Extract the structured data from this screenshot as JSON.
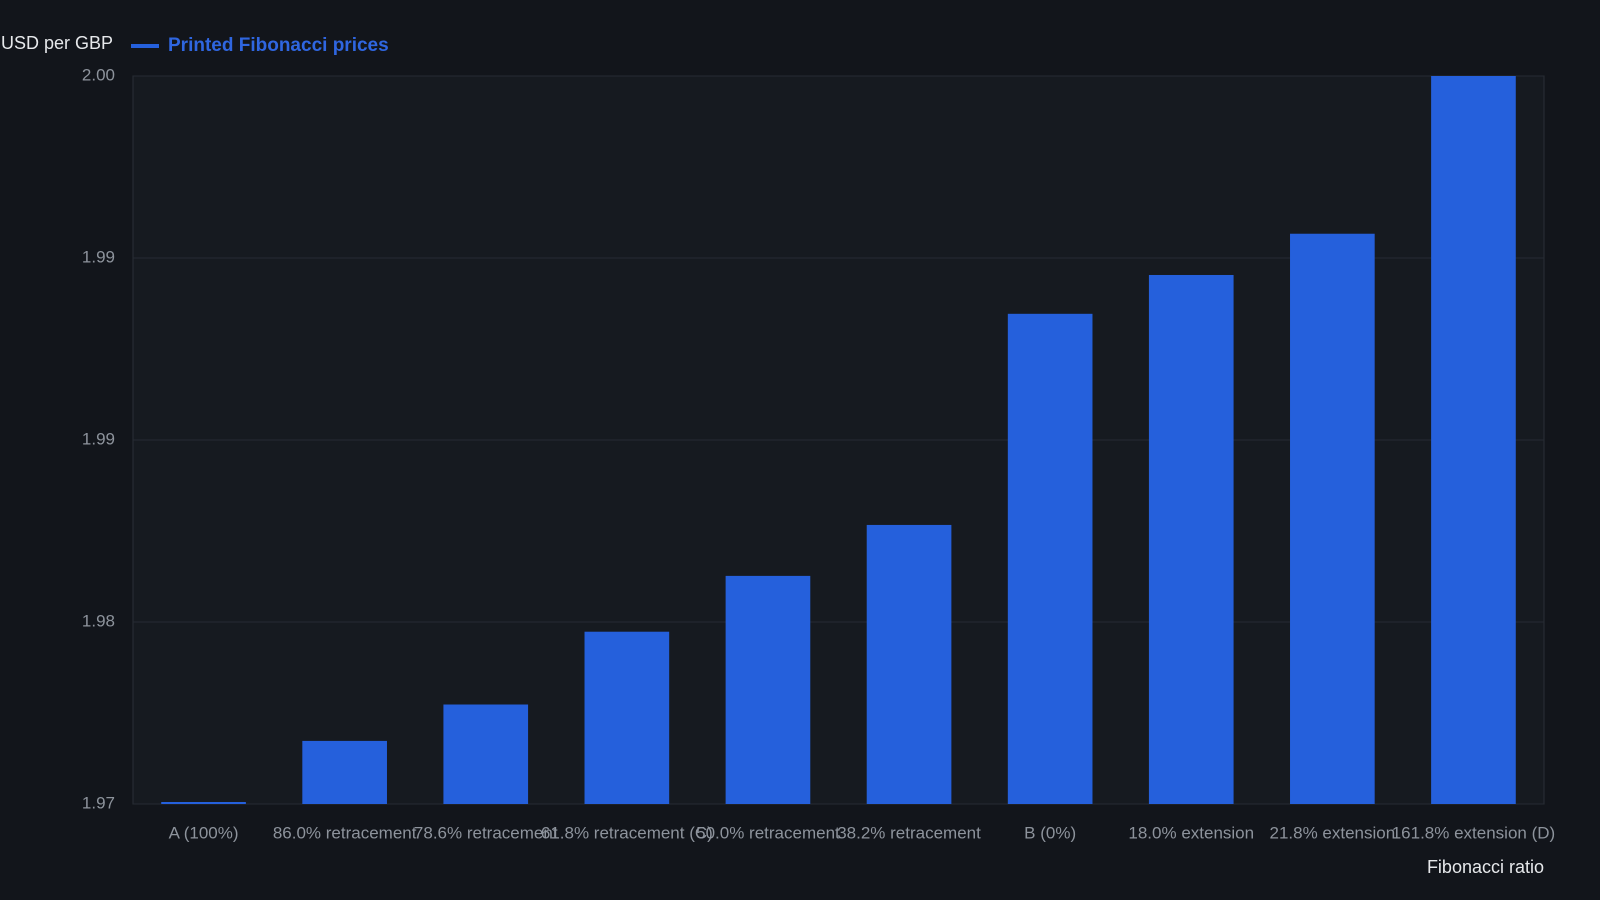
{
  "chart_data": {
    "type": "bar",
    "y_axis_label": "USD per GBP",
    "x_axis_label": "Fibonacci ratio",
    "categories": [
      "A (100%)",
      "86.0% retracement",
      "78.6% retracement",
      "61.8% retracement (C)",
      "50.0% retracement",
      "38.2% retracement",
      "B (0%)",
      "18.0% extension",
      "21.8% extension",
      "161.8% extension (D)"
    ],
    "series": [
      {
        "name": "Printed Fibonacci prices",
        "color": "#2560dc",
        "values": [
          1.97,
          1.9726,
          1.9741,
          1.9771,
          1.9794,
          1.9815,
          1.9902,
          1.9918,
          1.9935,
          2.0
        ]
      }
    ],
    "ylim": [
      1.97,
      2.0
    ],
    "yticks": [
      1.97,
      {
        "value": 1.9775,
        "label": "1.98"
      },
      {
        "value": 1.985,
        "label": "1.99"
      },
      {
        "value": 1.9925,
        "label": "1.99"
      },
      {
        "value": 2.0,
        "label": "2.00"
      }
    ],
    "grid": true,
    "legend": "top-left"
  }
}
